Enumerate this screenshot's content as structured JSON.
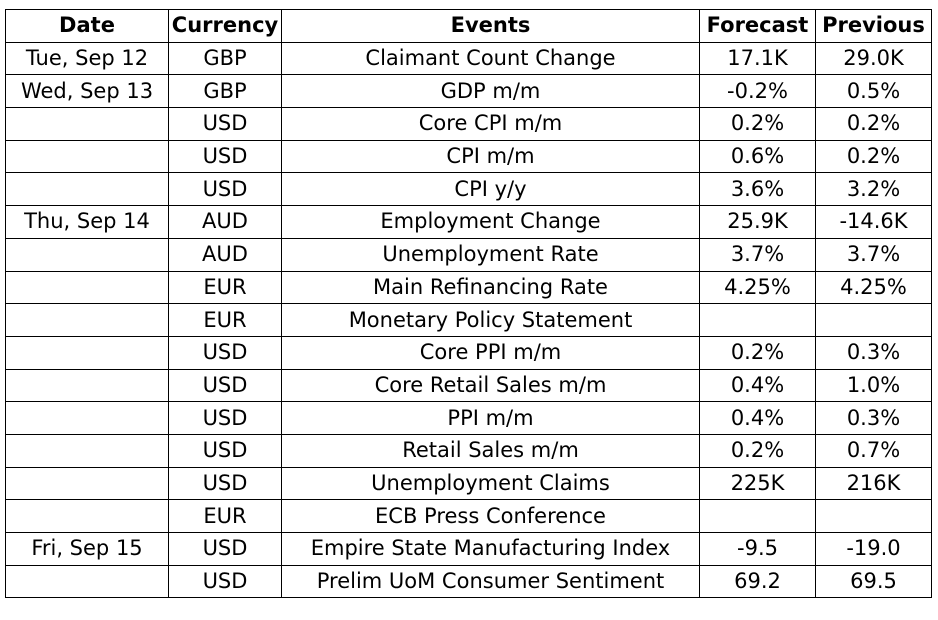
{
  "table": {
    "headers": {
      "date": "Date",
      "currency": "Currency",
      "events": "Events",
      "forecast": "Forecast",
      "previous": "Previous"
    },
    "rows": [
      {
        "date": "Tue, Sep 12",
        "currency": "GBP",
        "event": "Claimant Count Change",
        "forecast": "17.1K",
        "previous": "29.0K"
      },
      {
        "date": "Wed, Sep 13",
        "currency": "GBP",
        "event": "GDP m/m",
        "forecast": "-0.2%",
        "previous": "0.5%"
      },
      {
        "date": "",
        "currency": "USD",
        "event": "Core CPI m/m",
        "forecast": "0.2%",
        "previous": "0.2%"
      },
      {
        "date": "",
        "currency": "USD",
        "event": "CPI m/m",
        "forecast": "0.6%",
        "previous": "0.2%"
      },
      {
        "date": "",
        "currency": "USD",
        "event": "CPI y/y",
        "forecast": "3.6%",
        "previous": "3.2%"
      },
      {
        "date": "Thu, Sep 14",
        "currency": "AUD",
        "event": "Employment Change",
        "forecast": "25.9K",
        "previous": "-14.6K"
      },
      {
        "date": "",
        "currency": "AUD",
        "event": "Unemployment Rate",
        "forecast": "3.7%",
        "previous": "3.7%"
      },
      {
        "date": "",
        "currency": "EUR",
        "event": "Main Refinancing Rate",
        "forecast": "4.25%",
        "previous": "4.25%"
      },
      {
        "date": "",
        "currency": "EUR",
        "event": "Monetary Policy Statement",
        "forecast": "",
        "previous": ""
      },
      {
        "date": "",
        "currency": "USD",
        "event": "Core PPI m/m",
        "forecast": "0.2%",
        "previous": "0.3%"
      },
      {
        "date": "",
        "currency": "USD",
        "event": "Core Retail Sales m/m",
        "forecast": "0.4%",
        "previous": "1.0%"
      },
      {
        "date": "",
        "currency": "USD",
        "event": "PPI m/m",
        "forecast": "0.4%",
        "previous": "0.3%"
      },
      {
        "date": "",
        "currency": "USD",
        "event": "Retail Sales m/m",
        "forecast": "0.2%",
        "previous": "0.7%"
      },
      {
        "date": "",
        "currency": "USD",
        "event": "Unemployment Claims",
        "forecast": "225K",
        "previous": "216K"
      },
      {
        "date": "",
        "currency": "EUR",
        "event": "ECB Press Conference",
        "forecast": "",
        "previous": ""
      },
      {
        "date": "Fri, Sep 15",
        "currency": "USD",
        "event": "Empire State Manufacturing Index",
        "forecast": "-9.5",
        "previous": "-19.0"
      },
      {
        "date": "",
        "currency": "USD",
        "event": "Prelim UoM Consumer Sentiment",
        "forecast": "69.2",
        "previous": "69.5"
      }
    ]
  }
}
